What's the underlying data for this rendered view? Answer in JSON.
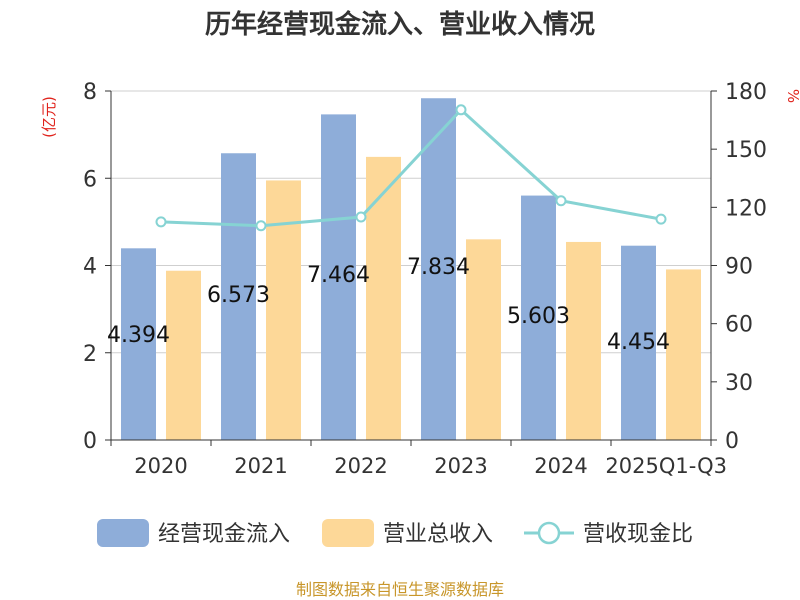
{
  "title": "历年经营现金流入、营业收入情况",
  "left_unit": "(亿元)",
  "right_unit": "%",
  "source": "制图数据来自恒生聚源数据库",
  "colors": {
    "cash_inflow": "#8eadd9",
    "revenue": "#fdd898",
    "ratio": "#86d3d3",
    "title": "#333333",
    "unit": "#e0231c",
    "source": "#c8962a"
  },
  "chart_data": {
    "type": "bar",
    "title": "历年经营现金流入、营业收入情况",
    "categories": [
      "2020",
      "2021",
      "2022",
      "2023",
      "2024",
      "2025Q1-Q3"
    ],
    "y_left": {
      "label": "(亿元)",
      "min": 0,
      "max": 8,
      "ticks": [
        0,
        2,
        4,
        6,
        8
      ]
    },
    "y_right": {
      "label": "%",
      "min": 0,
      "max": 180,
      "ticks": [
        0,
        30,
        60,
        90,
        120,
        150,
        180
      ]
    },
    "grid": true,
    "legend_position": "bottom",
    "series": [
      {
        "name": "经营现金流入",
        "type": "bar",
        "axis": "left",
        "values": [
          4.394,
          6.573,
          7.464,
          7.834,
          5.603,
          4.454
        ],
        "labels": [
          "4.394",
          "6.573",
          "7.464",
          "7.834",
          "5.603",
          "4.454"
        ]
      },
      {
        "name": "营业总收入",
        "type": "bar",
        "axis": "left",
        "values": [
          3.88,
          5.95,
          6.49,
          4.6,
          4.54,
          3.91
        ]
      },
      {
        "name": "营收现金比",
        "type": "line",
        "axis": "right",
        "values": [
          112.5,
          110.5,
          115.0,
          170.3,
          123.4,
          113.9
        ]
      }
    ]
  }
}
